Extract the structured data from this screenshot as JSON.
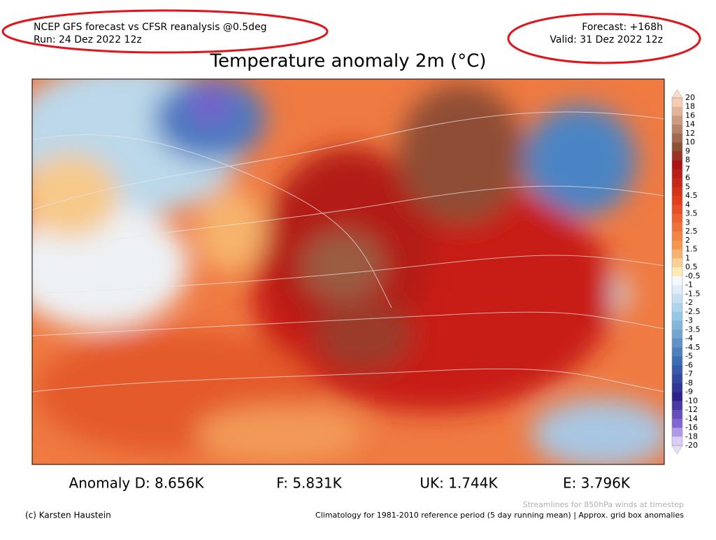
{
  "header": {
    "left": [
      "NCEP GFS forecast vs CFSR reanalysis @0.5deg",
      "Run: 24 Dez 2022 12z"
    ],
    "right": [
      "Forecast: +168h",
      "Valid: 31 Dez 2022 12z"
    ]
  },
  "title": "Temperature anomaly 2m (°C)",
  "colorbar": {
    "labels": [
      "20",
      "18",
      "16",
      "14",
      "12",
      "10",
      "9",
      "8",
      "7",
      "6",
      "5",
      "4.5",
      "4",
      "3.5",
      "3",
      "2.5",
      "2",
      "1.5",
      "1",
      "0.5",
      "-0.5",
      "-1",
      "-1.5",
      "-2",
      "-2.5",
      "-3",
      "-3.5",
      "-4",
      "-4.5",
      "-5",
      "-6",
      "-7",
      "-8",
      "-9",
      "-10",
      "-12",
      "-14",
      "-16",
      "-18",
      "-20"
    ]
  },
  "stats": [
    "Anomaly D: 8.656K",
    "F: 5.831K",
    "UK: 1.744K",
    "E: 3.796K"
  ],
  "footer": {
    "streamlines": "Streamlines for 850hPa winds at timestep",
    "credit": "(c) Karsten Haustein",
    "climatology": "Climatology for 1981-2010 reference period (5 day running mean) | Approx. grid box anomalies"
  }
}
